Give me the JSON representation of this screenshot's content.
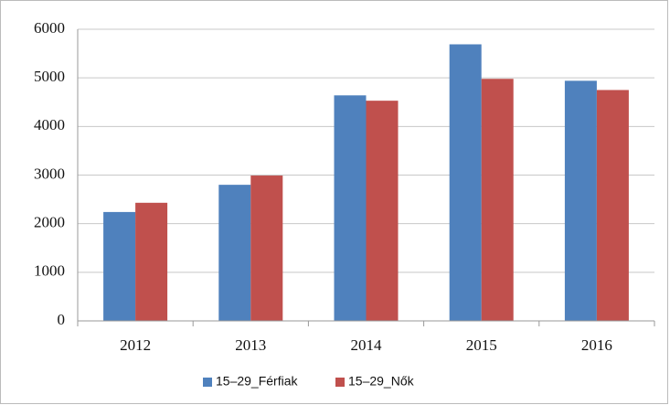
{
  "chart_data": {
    "type": "bar",
    "categories": [
      "2012",
      "2013",
      "2014",
      "2015",
      "2016"
    ],
    "series": [
      {
        "name": "15–29_Férfiak",
        "color": "#4f81bd",
        "values": [
          2240,
          2800,
          4640,
          5690,
          4940
        ]
      },
      {
        "name": "15–29_Nők",
        "color": "#c0504d",
        "values": [
          2430,
          2990,
          4530,
          4980,
          4750
        ]
      }
    ],
    "ylim": [
      0,
      6000
    ],
    "yticks": [
      0,
      1000,
      2000,
      3000,
      4000,
      5000,
      6000
    ],
    "grid": true,
    "legend": "bottom"
  }
}
